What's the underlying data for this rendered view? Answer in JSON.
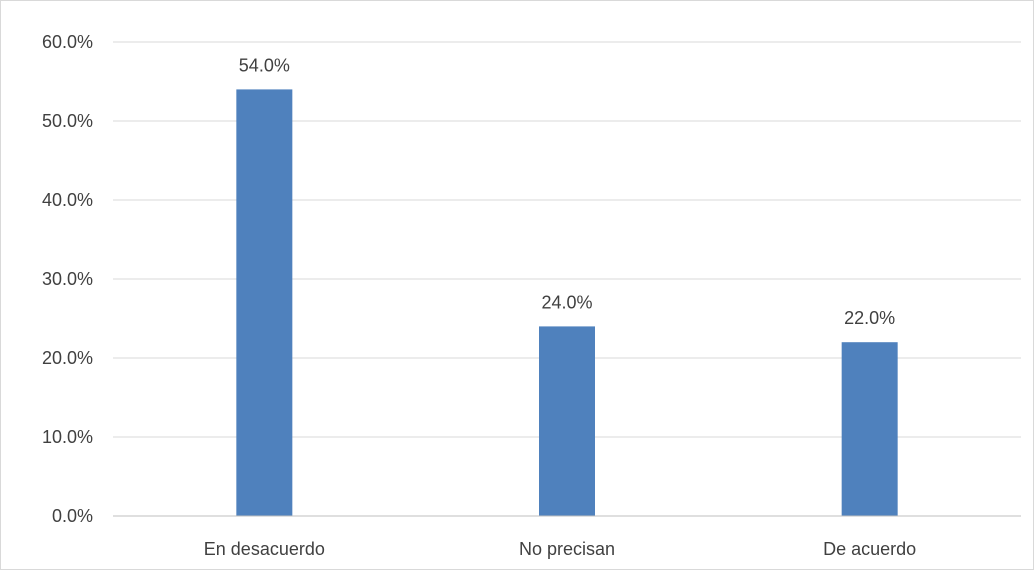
{
  "chart_data": {
    "type": "bar",
    "categories": [
      "En desacuerdo",
      "No precisan",
      "De acuerdo"
    ],
    "values": [
      54.0,
      24.0,
      22.0
    ],
    "data_labels": [
      "54.0%",
      "24.0%",
      "22.0%"
    ],
    "title": "",
    "xlabel": "",
    "ylabel": "",
    "ylim": [
      0,
      60
    ],
    "yticks": [
      0,
      10,
      20,
      30,
      40,
      50,
      60
    ],
    "ytick_labels": [
      "0.0%",
      "10.0%",
      "20.0%",
      "30.0%",
      "40.0%",
      "50.0%",
      "60.0%"
    ],
    "grid": true,
    "legend": "none",
    "colors": {
      "bar": "#4f81bd",
      "grid": "#d9d9d9",
      "axis": "#bfbfbf",
      "text": "#404040"
    }
  }
}
